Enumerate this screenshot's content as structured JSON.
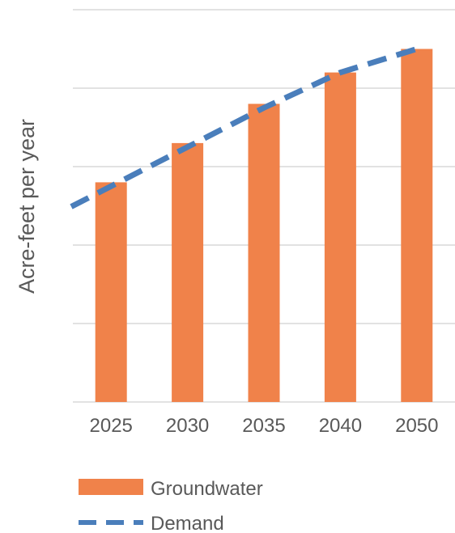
{
  "chart_data": {
    "type": "bar",
    "ylabel": "Acre-feet per year",
    "categories": [
      "2025",
      "2030",
      "2035",
      "2040",
      "2050"
    ],
    "ylim": [
      0,
      5
    ],
    "grid": true,
    "y_tick_labels_shown": false,
    "legend_position": "bottom",
    "series": [
      {
        "name": "Groundwater",
        "type": "bar",
        "color": "#F0824A",
        "values": [
          2.8,
          3.3,
          3.8,
          4.2,
          4.5
        ]
      },
      {
        "name": "Demand",
        "type": "line",
        "style": "dashed",
        "color": "#4A7EBB",
        "values": [
          2.75,
          3.25,
          3.75,
          4.2,
          4.5
        ]
      }
    ]
  }
}
